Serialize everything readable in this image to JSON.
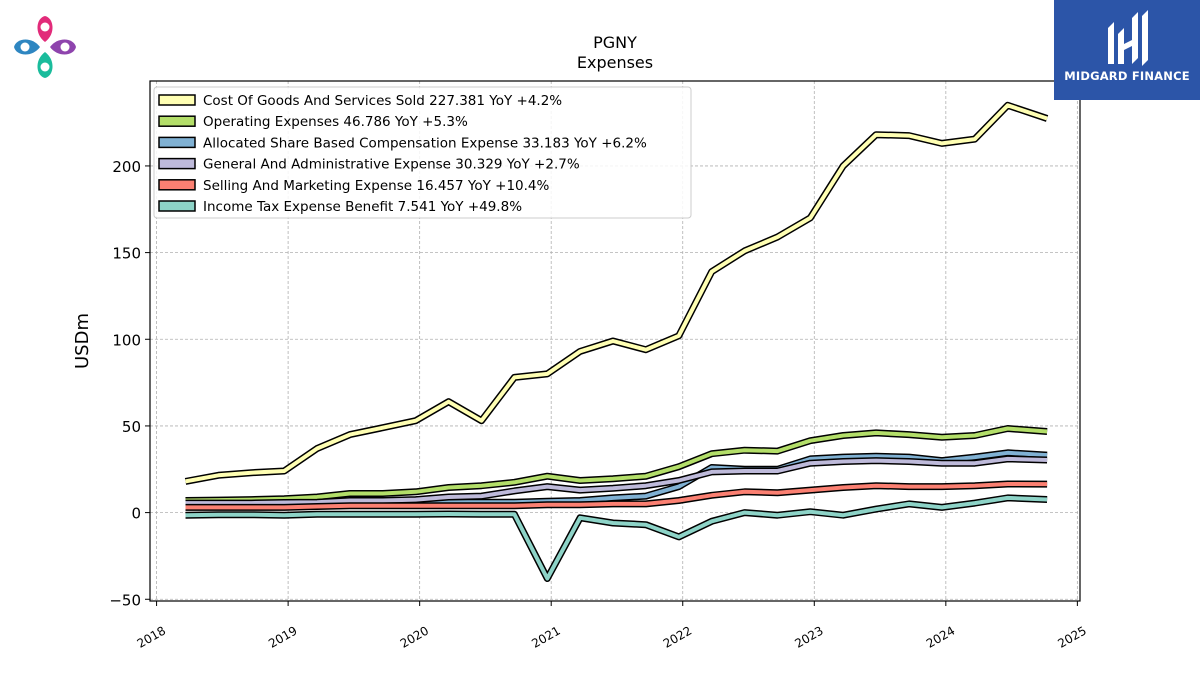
{
  "brand": {
    "name": "MIDGARD FINANCE",
    "logo_icon": "midgard-monogram-icon",
    "left_logo_icon": "four-petal-logo-icon"
  },
  "chart_data": {
    "type": "line",
    "title": "PGNY",
    "subtitle": "Expenses",
    "xlabel": "",
    "ylabel": "USDm",
    "xlim": [
      2017.95,
      2025.02
    ],
    "ylim": [
      -51,
      249
    ],
    "x_ticks": [
      "2018",
      "2019",
      "2020",
      "2021",
      "2022",
      "2023",
      "2024",
      "2025"
    ],
    "y_ticks": [
      -50,
      0,
      50,
      100,
      150,
      200
    ],
    "grid": true,
    "legend_position": "top-left",
    "x": [
      2018.22,
      2018.47,
      2018.72,
      2018.97,
      2019.22,
      2019.47,
      2019.72,
      2019.97,
      2020.22,
      2020.47,
      2020.72,
      2020.97,
      2021.22,
      2021.47,
      2021.72,
      2021.97,
      2022.22,
      2022.47,
      2022.72,
      2022.97,
      2023.22,
      2023.47,
      2023.72,
      2023.97,
      2024.22,
      2024.47,
      2024.77
    ],
    "series": [
      {
        "name": "Cost Of Goods And Services Sold",
        "legend_label": "Cost Of Goods And Services Sold  227.381 YoY +4.2%",
        "color": "#ffffb3",
        "values": [
          18,
          21.5,
          23,
          24,
          37,
          45,
          49,
          53,
          64,
          53,
          78,
          80,
          93,
          99,
          94,
          102,
          139,
          151,
          159,
          170,
          200,
          218,
          217.5,
          213,
          215.5,
          235,
          227.381
        ]
      },
      {
        "name": "Operating Expenses",
        "legend_label": "Operating Expenses  46.786 YoY +5.3%",
        "color": "#b3de69",
        "values": [
          7,
          7.2,
          7.5,
          8,
          9,
          11,
          11,
          12,
          14.5,
          15.5,
          17.5,
          21,
          18.5,
          19.5,
          21,
          26.5,
          34,
          36,
          35.5,
          41.5,
          44.5,
          46,
          45,
          43.5,
          44.5,
          48.5,
          46.786
        ]
      },
      {
        "name": "Allocated Share Based Compensation Expense",
        "legend_label": "Allocated Share Based Compensation Expense  33.183 YoY +6.2%",
        "color": "#80b1d3",
        "values": [
          3.5,
          3.5,
          3.5,
          3.8,
          4.5,
          5,
          5,
          5,
          6,
          6,
          6,
          6.5,
          7,
          8.5,
          9.5,
          15,
          26,
          25,
          25,
          31,
          32,
          32.5,
          32,
          30,
          32,
          34.5,
          33.183
        ]
      },
      {
        "name": "General And Administrative Expense",
        "legend_label": "General And Administrative Expense  30.329 YoY +2.7%",
        "color": "#bebada",
        "values": [
          5.5,
          5.5,
          5.5,
          5.8,
          6,
          7,
          7,
          7.5,
          9,
          9.5,
          12.5,
          15,
          13,
          14,
          15.5,
          18.5,
          23.5,
          24,
          24,
          28.5,
          29.5,
          30,
          29.5,
          28.5,
          28.5,
          31,
          30.329
        ]
      },
      {
        "name": "Selling And Marketing Expense",
        "legend_label": "Selling And Marketing Expense  16.457 YoY +10.4%",
        "color": "#fb8072",
        "values": [
          3,
          3,
          3,
          3,
          3.5,
          4,
          4,
          4,
          4,
          4,
          4,
          4.5,
          4.5,
          5,
          5,
          7,
          10,
          12,
          11.5,
          13,
          14.5,
          15.5,
          15,
          15,
          15.5,
          16.5,
          16.457
        ]
      },
      {
        "name": "Income Tax Expense Benefit",
        "legend_label": "Income Tax Expense Benefit  7.541 YoY +49.8%",
        "color": "#8dd3c7",
        "values": [
          -1.5,
          -1.2,
          -1.2,
          -1.5,
          -1,
          -1,
          -1,
          -1,
          -0.8,
          -1,
          -1,
          -38,
          -3,
          -6,
          -7,
          -14,
          -5,
          0,
          -1.5,
          0.5,
          -1.5,
          2,
          5,
          3,
          5.5,
          8.5,
          7.541
        ]
      }
    ]
  }
}
